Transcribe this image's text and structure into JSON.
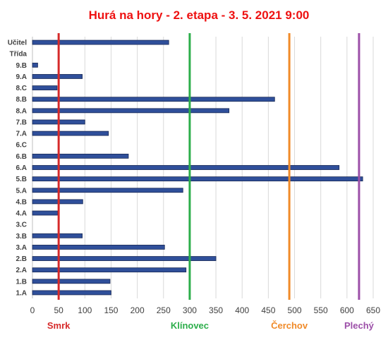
{
  "chart_data": {
    "type": "bar",
    "orientation": "horizontal",
    "title": "Hurá na hory - 2. etapa - 3. 5. 2021 9:00",
    "title_color": "#ee1111",
    "categories": [
      "Učitel",
      "Třída",
      "9.B",
      "9.A",
      "8.C",
      "8.B",
      "8.A",
      "7.B",
      "7.A",
      "6.C",
      "6.B",
      "6.A",
      "5.B",
      "5.A",
      "4.B",
      "4.A",
      "3.C",
      "3.B",
      "3.A",
      "2.B",
      "2.A",
      "1.B",
      "1.A"
    ],
    "values": [
      260,
      0,
      10,
      95,
      47,
      462,
      375,
      100,
      145,
      0,
      183,
      585,
      630,
      287,
      96,
      48,
      0,
      95,
      252,
      350,
      293,
      148,
      150
    ],
    "bar_color": "#2f4f9a",
    "bar_edge_color": "#1a2a55",
    "xlim": [
      0,
      650
    ],
    "xticks": [
      0,
      50,
      100,
      150,
      200,
      250,
      300,
      350,
      400,
      450,
      500,
      550,
      600,
      650
    ],
    "grid": "vertical",
    "legend": "none",
    "reference_lines": [
      {
        "label": "Smrk",
        "x": 50,
        "color": "#d62a2a"
      },
      {
        "label": "Klínovec",
        "x": 300,
        "color": "#2cae4a"
      },
      {
        "label": "Čerchov",
        "x": 490,
        "color": "#f08a28"
      },
      {
        "label": "Plechý",
        "x": 623,
        "color": "#9c4fa8"
      }
    ]
  }
}
